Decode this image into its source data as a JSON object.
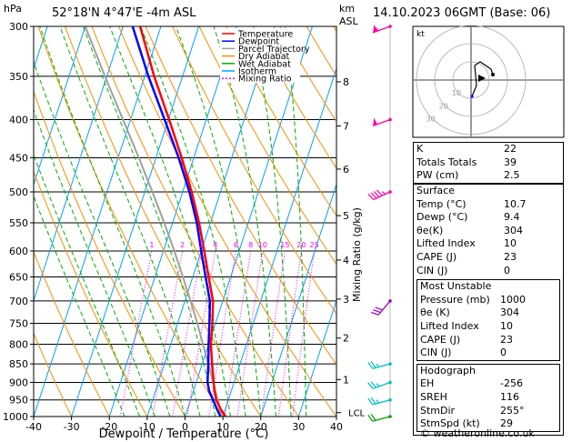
{
  "header": {
    "hpa_unit": "hPa",
    "location": "52°18'N  4°47'E  -4m  ASL",
    "km_unit": "km",
    "asl_unit": "ASL",
    "datetime": "14.10.2023  06GMT  (Base: 06)"
  },
  "legend": [
    {
      "label": "Temperature",
      "color": "#ff0000",
      "dash": ""
    },
    {
      "label": "Dewpoint",
      "color": "#0000ff",
      "dash": ""
    },
    {
      "label": "Parcel Trajectory",
      "color": "#a0a0a0",
      "dash": ""
    },
    {
      "label": "Dry Adiabat",
      "color": "#ff8c00",
      "dash": ""
    },
    {
      "label": "Wet Adiabat",
      "color": "#00b000",
      "dash": ""
    },
    {
      "label": "Isotherm",
      "color": "#00a0ff",
      "dash": ""
    },
    {
      "label": "Mixing Ratio",
      "color": "#ff00ff",
      "dash": "2,2"
    }
  ],
  "chart_data": {
    "type": "skew-t log-p sounding",
    "xlabel": "Dewpoint / Temperature (°C)",
    "ylabel": "hPa",
    "mixing_ratio_axis_label": "Mixing Ratio (g/kg)",
    "xlim": [
      -40,
      40
    ],
    "ylim_hpa": [
      1000,
      300
    ],
    "x_ticks": [
      -40,
      -30,
      -20,
      -10,
      0,
      10,
      20,
      30,
      40
    ],
    "pressure_levels": [
      300,
      350,
      400,
      450,
      500,
      550,
      600,
      650,
      700,
      750,
      800,
      850,
      900,
      950,
      1000
    ],
    "km_ticks": [
      {
        "label": "8",
        "p": 356
      },
      {
        "label": "7",
        "p": 408
      },
      {
        "label": "6",
        "p": 466
      },
      {
        "label": "5",
        "p": 538
      },
      {
        "label": "4",
        "p": 617
      },
      {
        "label": "3",
        "p": 696
      },
      {
        "label": "2",
        "p": 785
      },
      {
        "label": "1",
        "p": 892
      }
    ],
    "lcl": {
      "label": "LCL",
      "p": 988
    },
    "mixing_ratio_labels": [
      "1",
      "2",
      "3",
      "4",
      "6",
      "8",
      "10",
      "15",
      "20",
      "25"
    ],
    "mixing_ratio_values": [
      1,
      2,
      3,
      4,
      6,
      8,
      10,
      15,
      20,
      25
    ],
    "isotherms": [
      -110,
      -100,
      -90,
      -80,
      -70,
      -60,
      -50,
      -40,
      -30,
      -20,
      -10,
      0,
      10,
      20,
      30,
      40
    ],
    "dry_adiabats_theta_c": [
      -30,
      -20,
      -10,
      0,
      10,
      20,
      30,
      40,
      50,
      60,
      70,
      80,
      90,
      100,
      110,
      120,
      130
    ],
    "wet_adiabats_theta_w_c": [
      -16,
      -12,
      -8,
      -4,
      0,
      4,
      8,
      12,
      16,
      20,
      24,
      28,
      32
    ],
    "temperature": {
      "p": [
        1000,
        975,
        950,
        925,
        900,
        850,
        800,
        750,
        700,
        650,
        600,
        550,
        500,
        450,
        400,
        350,
        300
      ],
      "t": [
        10.7,
        8.6,
        6.8,
        5.6,
        4.6,
        2.6,
        0.6,
        -0.8,
        -2.6,
        -5.8,
        -9.2,
        -13.0,
        -17.6,
        -23.2,
        -29.8,
        -37.5,
        -45.5
      ]
    },
    "dewpoint": {
      "p": [
        1000,
        975,
        950,
        925,
        900,
        850,
        800,
        750,
        700,
        650,
        600,
        550,
        500,
        450,
        400,
        350,
        300
      ],
      "td": [
        9.4,
        7.6,
        6.0,
        4.2,
        3.0,
        1.6,
        0.0,
        -1.6,
        -3.4,
        -6.6,
        -10.0,
        -13.6,
        -18.2,
        -24.0,
        -31.0,
        -39.0,
        -47.5
      ]
    },
    "parcel": {
      "p": [
        1000,
        985,
        950,
        900,
        850,
        800,
        750,
        700,
        650,
        600,
        550,
        500,
        450,
        400,
        350,
        300
      ],
      "t": [
        10.7,
        9.1,
        7.2,
        4.5,
        1.6,
        -1.5,
        -4.8,
        -8.5,
        -12.6,
        -17.1,
        -22.2,
        -28.0,
        -34.5,
        -42.0,
        -50.5,
        -60.0
      ]
    },
    "wind_barbs": [
      {
        "p": 300,
        "dir": 250,
        "kt": 55,
        "color": "#ff00a0"
      },
      {
        "p": 400,
        "dir": 250,
        "kt": 50,
        "color": "#ff00a0"
      },
      {
        "p": 500,
        "dir": 245,
        "kt": 45,
        "color": "#ff00a0"
      },
      {
        "p": 700,
        "dir": 220,
        "kt": 30,
        "color": "#9900cc"
      },
      {
        "p": 850,
        "dir": 255,
        "kt": 25,
        "color": "#00c0c0"
      },
      {
        "p": 900,
        "dir": 250,
        "kt": 25,
        "color": "#00c0c0"
      },
      {
        "p": 950,
        "dir": 255,
        "kt": 25,
        "color": "#00c0c0"
      },
      {
        "p": 1000,
        "dir": 255,
        "kt": 20,
        "color": "#00a000"
      }
    ],
    "hodograph": {
      "unit_label": "kt",
      "ring_labels": [
        "10",
        "20",
        "30"
      ],
      "points_kt": [
        [
          0.5,
          -9
        ],
        [
          3,
          -3
        ],
        [
          2,
          8
        ],
        [
          5,
          10
        ],
        [
          11,
          6
        ],
        [
          12,
          3
        ]
      ],
      "storm_motion_kt": [
        6,
        1
      ],
      "trace_color": "#000000",
      "accent_color": "#0000ff"
    }
  },
  "indices": [
    {
      "label": "K",
      "value": "22"
    },
    {
      "label": "Totals Totals",
      "value": "39"
    },
    {
      "label": "PW (cm)",
      "value": "2.5"
    }
  ],
  "surface": {
    "title": "Surface",
    "rows": [
      {
        "label": "Temp (°C)",
        "value": "10.7"
      },
      {
        "label": "Dewp (°C)",
        "value": "9.4"
      },
      {
        "label": "θe(K)",
        "value": "304"
      },
      {
        "label": "Lifted Index",
        "value": "10"
      },
      {
        "label": "CAPE (J)",
        "value": "23"
      },
      {
        "label": "CIN (J)",
        "value": "0"
      }
    ]
  },
  "most_unstable": {
    "title": "Most Unstable",
    "rows": [
      {
        "label": "Pressure (mb)",
        "value": "1000"
      },
      {
        "label": "θe (K)",
        "value": "304"
      },
      {
        "label": "Lifted Index",
        "value": "10"
      },
      {
        "label": "CAPE (J)",
        "value": "23"
      },
      {
        "label": "CIN (J)",
        "value": "0"
      }
    ]
  },
  "hodograph_table": {
    "title": "Hodograph",
    "rows": [
      {
        "label": "EH",
        "value": "-256"
      },
      {
        "label": "SREH",
        "value": "116"
      },
      {
        "label": "StmDir",
        "value": "255°"
      },
      {
        "label": "StmSpd (kt)",
        "value": "29"
      }
    ]
  },
  "credit": "© weatheronline.co.uk"
}
